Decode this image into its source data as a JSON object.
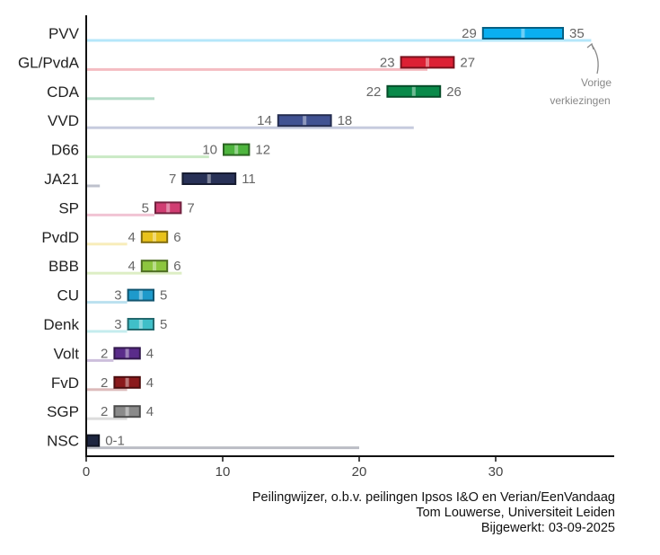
{
  "chart_data": {
    "type": "bar",
    "orientation": "horizontal",
    "xlim": [
      0,
      39
    ],
    "xticks": [
      0,
      10,
      20,
      30
    ],
    "annotation": "Vorige verkiezingen",
    "parties": [
      {
        "name": "PVV",
        "low": 29,
        "high": 35,
        "range_label": "",
        "previous": 37,
        "color": "#0AAFF0"
      },
      {
        "name": "GL/PvdA",
        "low": 23,
        "high": 27,
        "range_label": "",
        "previous": 25,
        "color": "#DC2034"
      },
      {
        "name": "CDA",
        "low": 22,
        "high": 26,
        "range_label": "",
        "previous": 5,
        "color": "#0A8A4A"
      },
      {
        "name": "VVD",
        "low": 14,
        "high": 18,
        "range_label": "",
        "previous": 24,
        "color": "#415292"
      },
      {
        "name": "D66",
        "low": 10,
        "high": 12,
        "range_label": "",
        "previous": 9,
        "color": "#4EB53E"
      },
      {
        "name": "JA21",
        "low": 7,
        "high": 11,
        "range_label": "",
        "previous": 1,
        "color": "#283157"
      },
      {
        "name": "SP",
        "low": 5,
        "high": 7,
        "range_label": "",
        "previous": 5,
        "color": "#D03D72"
      },
      {
        "name": "PvdD",
        "low": 4,
        "high": 6,
        "range_label": "",
        "previous": 3,
        "color": "#E8C21C"
      },
      {
        "name": "BBB",
        "low": 4,
        "high": 6,
        "range_label": "",
        "previous": 7,
        "color": "#8DC63F"
      },
      {
        "name": "CU",
        "low": 3,
        "high": 5,
        "range_label": "",
        "previous": 3,
        "color": "#1E9ACB"
      },
      {
        "name": "Denk",
        "low": 3,
        "high": 5,
        "range_label": "",
        "previous": 3,
        "color": "#40BFC8"
      },
      {
        "name": "Volt",
        "low": 2,
        "high": 4,
        "range_label": "",
        "previous": 2,
        "color": "#5A2C8A"
      },
      {
        "name": "FvD",
        "low": 2,
        "high": 4,
        "range_label": "",
        "previous": 3,
        "color": "#8A1A1C"
      },
      {
        "name": "SGP",
        "low": 2,
        "high": 4,
        "range_label": "",
        "previous": 3,
        "color": "#8A8A8A"
      },
      {
        "name": "NSC",
        "low": 0,
        "high": 1,
        "range_label": "0-1",
        "previous": 20,
        "color": "#1E2640"
      }
    ]
  },
  "credits": {
    "line1": "Peilingwijzer, o.b.v. peilingen Ipsos I&O en Verian/EenVandaag",
    "line2": "Tom Louwerse, Universiteit Leiden",
    "line3": "Bijgewerkt: 03-09-2025"
  }
}
